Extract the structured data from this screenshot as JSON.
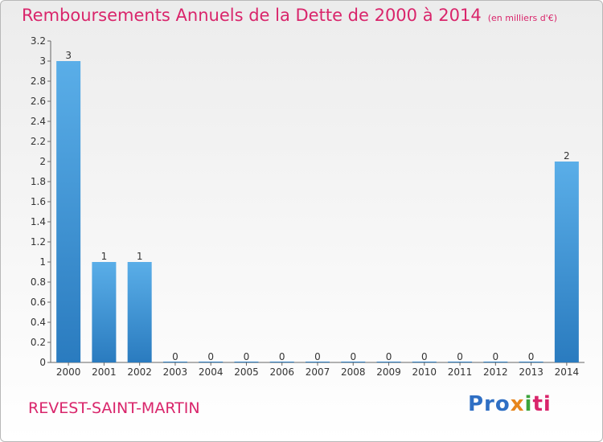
{
  "chart_data": {
    "type": "bar",
    "title": "Remboursements Annuels de la Dette de 2000 à 2014",
    "unit_note": "(en milliers d'€)",
    "categories": [
      "2000",
      "2001",
      "2002",
      "2003",
      "2004",
      "2005",
      "2006",
      "2007",
      "2008",
      "2009",
      "2010",
      "2011",
      "2012",
      "2013",
      "2014"
    ],
    "values": [
      3,
      1,
      1,
      0,
      0,
      0,
      0,
      0,
      0,
      0,
      0,
      0,
      0,
      0,
      2
    ],
    "value_labels": [
      "3",
      "1",
      "1",
      "0",
      "0",
      "0",
      "0",
      "0",
      "0",
      "0",
      "0",
      "0",
      "0",
      "0",
      "2"
    ],
    "ylim": [
      0,
      3.2
    ],
    "yticks": [
      0,
      0.2,
      0.4,
      0.6,
      0.8,
      1,
      1.2,
      1.4,
      1.6,
      1.8,
      2,
      2.2,
      2.4,
      2.6,
      2.8,
      3,
      3.2
    ],
    "ytick_labels": [
      "0",
      "0.2",
      "0.4",
      "0.6",
      "0.8",
      "1",
      "1.2",
      "1.4",
      "1.6",
      "1.8",
      "2",
      "2.2",
      "2.4",
      "2.6",
      "2.8",
      "3",
      "3.2"
    ],
    "xlabel": "",
    "ylabel": "",
    "grid": false,
    "bar_color_top": "#5aaee8",
    "bar_color_bottom": "#2a7bbf"
  },
  "commune": "REVEST-SAINT-MARTIN",
  "logo": {
    "parts": [
      "Pro",
      "x",
      "i",
      "ti"
    ],
    "colors": [
      "#2f6fc4",
      "#e7861d",
      "#3ca43c",
      "#d9256b"
    ]
  }
}
